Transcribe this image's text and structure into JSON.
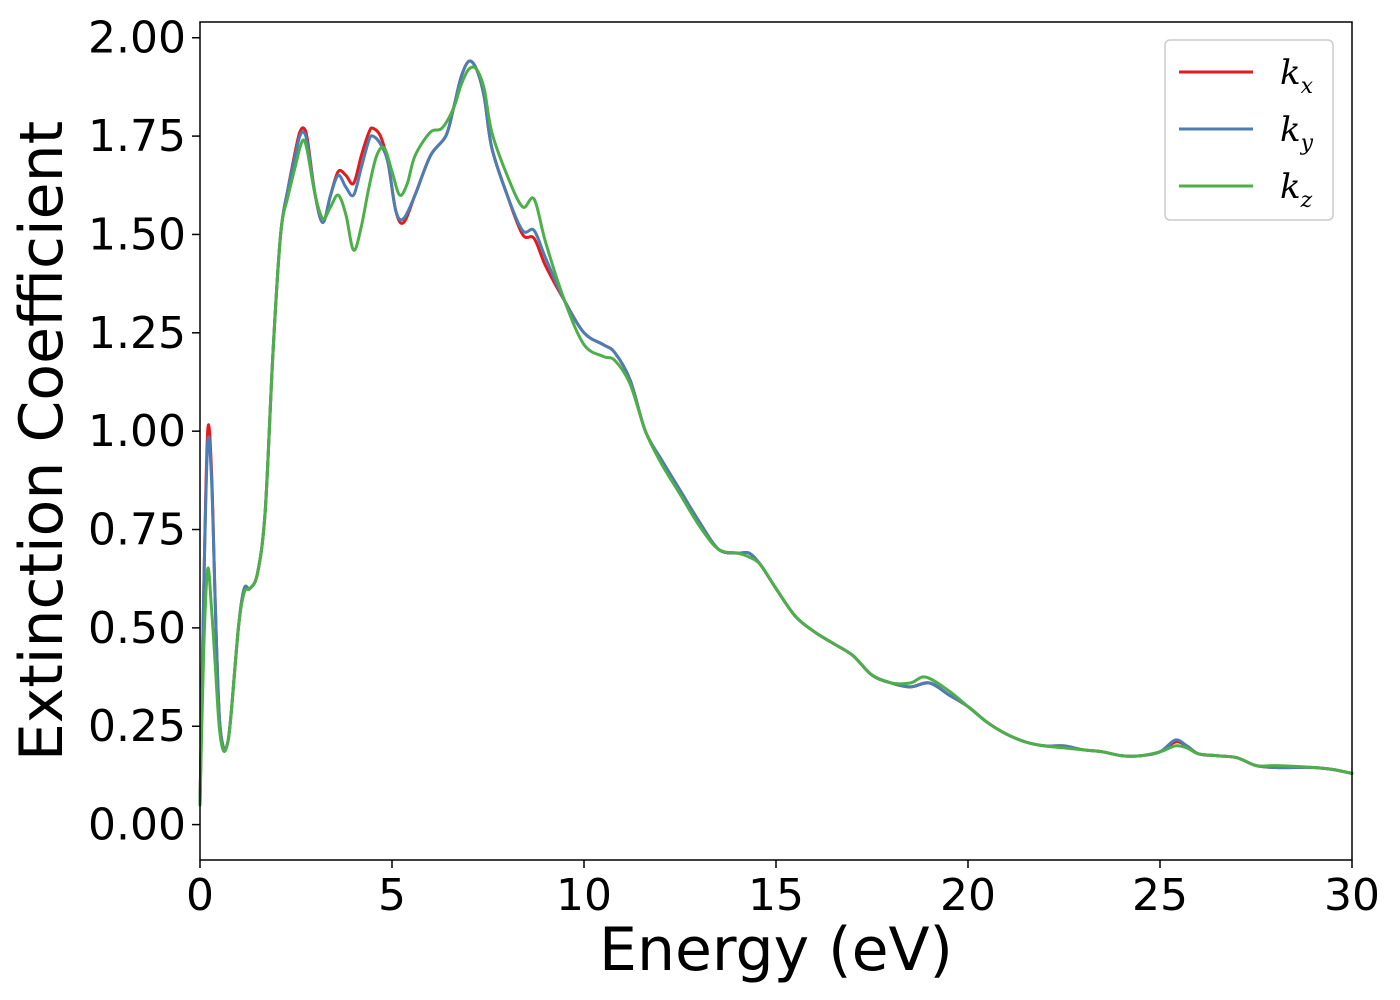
{
  "chart_data": {
    "type": "line",
    "xlabel": "Energy (eV)",
    "ylabel": "Extinction Coefficient",
    "xlim": [
      0,
      30
    ],
    "ylim": [
      -0.09,
      2.04
    ],
    "xticks": [
      0,
      5,
      10,
      15,
      20,
      25,
      30
    ],
    "xtick_labels": [
      "0",
      "5",
      "10",
      "15",
      "20",
      "25",
      "30"
    ],
    "yticks": [
      0.0,
      0.25,
      0.5,
      0.75,
      1.0,
      1.25,
      1.5,
      1.75,
      2.0
    ],
    "ytick_labels": [
      "0.00",
      "0.25",
      "0.50",
      "0.75",
      "1.00",
      "1.25",
      "1.50",
      "1.75",
      "2.00"
    ],
    "grid": false,
    "legend_position": "top-right",
    "series": [
      {
        "name": "k_x",
        "label_base": "k",
        "label_sub": "x",
        "color": "#e41a1c",
        "points": [
          [
            0,
            0.05
          ],
          [
            0.1,
            0.6
          ],
          [
            0.2,
            1.0
          ],
          [
            0.3,
            0.9
          ],
          [
            0.4,
            0.55
          ],
          [
            0.5,
            0.28
          ],
          [
            0.6,
            0.2
          ],
          [
            0.7,
            0.2
          ],
          [
            0.8,
            0.27
          ],
          [
            1.0,
            0.5
          ],
          [
            1.15,
            0.6
          ],
          [
            1.3,
            0.6
          ],
          [
            1.5,
            0.64
          ],
          [
            1.7,
            0.8
          ],
          [
            1.9,
            1.2
          ],
          [
            2.1,
            1.5
          ],
          [
            2.3,
            1.62
          ],
          [
            2.5,
            1.72
          ],
          [
            2.6,
            1.76
          ],
          [
            2.7,
            1.77
          ],
          [
            2.8,
            1.74
          ],
          [
            3.0,
            1.6
          ],
          [
            3.2,
            1.53
          ],
          [
            3.4,
            1.6
          ],
          [
            3.6,
            1.66
          ],
          [
            3.8,
            1.65
          ],
          [
            4.0,
            1.63
          ],
          [
            4.2,
            1.7
          ],
          [
            4.4,
            1.76
          ],
          [
            4.5,
            1.77
          ],
          [
            4.7,
            1.75
          ],
          [
            4.9,
            1.68
          ],
          [
            5.1,
            1.56
          ],
          [
            5.3,
            1.53
          ],
          [
            5.6,
            1.6
          ],
          [
            6.0,
            1.7
          ],
          [
            6.4,
            1.75
          ],
          [
            6.6,
            1.82
          ],
          [
            6.8,
            1.9
          ],
          [
            7.0,
            1.94
          ],
          [
            7.2,
            1.92
          ],
          [
            7.4,
            1.85
          ],
          [
            7.6,
            1.72
          ],
          [
            8.0,
            1.6
          ],
          [
            8.4,
            1.5
          ],
          [
            8.7,
            1.49
          ],
          [
            9.0,
            1.42
          ],
          [
            9.5,
            1.33
          ],
          [
            10.0,
            1.25
          ],
          [
            10.5,
            1.22
          ],
          [
            10.8,
            1.2
          ],
          [
            11.2,
            1.13
          ],
          [
            11.6,
            1.0
          ],
          [
            12.0,
            0.93
          ],
          [
            12.5,
            0.85
          ],
          [
            13.0,
            0.77
          ],
          [
            13.5,
            0.7
          ],
          [
            14.0,
            0.69
          ],
          [
            14.3,
            0.69
          ],
          [
            14.6,
            0.66
          ],
          [
            15.0,
            0.6
          ],
          [
            15.5,
            0.53
          ],
          [
            16.0,
            0.49
          ],
          [
            16.5,
            0.46
          ],
          [
            17.0,
            0.43
          ],
          [
            17.5,
            0.38
          ],
          [
            18.0,
            0.36
          ],
          [
            18.5,
            0.35
          ],
          [
            19.0,
            0.36
          ],
          [
            19.5,
            0.33
          ],
          [
            20.0,
            0.3
          ],
          [
            20.5,
            0.26
          ],
          [
            21.0,
            0.23
          ],
          [
            21.5,
            0.21
          ],
          [
            22.0,
            0.2
          ],
          [
            22.5,
            0.2
          ],
          [
            23.0,
            0.19
          ],
          [
            23.5,
            0.185
          ],
          [
            24.0,
            0.175
          ],
          [
            24.5,
            0.175
          ],
          [
            25.0,
            0.185
          ],
          [
            25.4,
            0.21
          ],
          [
            25.7,
            0.2
          ],
          [
            26.0,
            0.18
          ],
          [
            26.5,
            0.175
          ],
          [
            27.0,
            0.17
          ],
          [
            27.5,
            0.15
          ],
          [
            28.0,
            0.145
          ],
          [
            28.5,
            0.145
          ],
          [
            29.0,
            0.145
          ],
          [
            29.5,
            0.14
          ],
          [
            30.0,
            0.13
          ]
        ]
      },
      {
        "name": "k_y",
        "label_base": "k",
        "label_sub": "y",
        "color": "#4a7eb5",
        "points": [
          [
            0,
            0.05
          ],
          [
            0.1,
            0.6
          ],
          [
            0.2,
            0.97
          ],
          [
            0.3,
            0.88
          ],
          [
            0.4,
            0.55
          ],
          [
            0.5,
            0.28
          ],
          [
            0.6,
            0.2
          ],
          [
            0.7,
            0.2
          ],
          [
            0.8,
            0.27
          ],
          [
            1.0,
            0.5
          ],
          [
            1.15,
            0.6
          ],
          [
            1.3,
            0.6
          ],
          [
            1.5,
            0.64
          ],
          [
            1.7,
            0.8
          ],
          [
            1.9,
            1.2
          ],
          [
            2.1,
            1.5
          ],
          [
            2.3,
            1.62
          ],
          [
            2.5,
            1.71
          ],
          [
            2.6,
            1.75
          ],
          [
            2.7,
            1.76
          ],
          [
            2.8,
            1.73
          ],
          [
            3.0,
            1.6
          ],
          [
            3.2,
            1.53
          ],
          [
            3.4,
            1.6
          ],
          [
            3.6,
            1.65
          ],
          [
            3.8,
            1.62
          ],
          [
            4.0,
            1.6
          ],
          [
            4.2,
            1.67
          ],
          [
            4.4,
            1.74
          ],
          [
            4.5,
            1.75
          ],
          [
            4.7,
            1.73
          ],
          [
            4.9,
            1.68
          ],
          [
            5.1,
            1.56
          ],
          [
            5.3,
            1.54
          ],
          [
            5.6,
            1.6
          ],
          [
            6.0,
            1.7
          ],
          [
            6.4,
            1.75
          ],
          [
            6.6,
            1.82
          ],
          [
            6.8,
            1.9
          ],
          [
            7.0,
            1.94
          ],
          [
            7.2,
            1.92
          ],
          [
            7.4,
            1.85
          ],
          [
            7.6,
            1.72
          ],
          [
            8.0,
            1.6
          ],
          [
            8.4,
            1.51
          ],
          [
            8.7,
            1.51
          ],
          [
            9.0,
            1.44
          ],
          [
            9.5,
            1.33
          ],
          [
            10.0,
            1.25
          ],
          [
            10.5,
            1.22
          ],
          [
            10.8,
            1.2
          ],
          [
            11.2,
            1.13
          ],
          [
            11.6,
            1.0
          ],
          [
            12.0,
            0.93
          ],
          [
            12.5,
            0.85
          ],
          [
            13.0,
            0.77
          ],
          [
            13.5,
            0.7
          ],
          [
            14.0,
            0.69
          ],
          [
            14.3,
            0.69
          ],
          [
            14.6,
            0.66
          ],
          [
            15.0,
            0.6
          ],
          [
            15.5,
            0.53
          ],
          [
            16.0,
            0.49
          ],
          [
            16.5,
            0.46
          ],
          [
            17.0,
            0.43
          ],
          [
            17.5,
            0.38
          ],
          [
            18.0,
            0.36
          ],
          [
            18.5,
            0.35
          ],
          [
            19.0,
            0.36
          ],
          [
            19.5,
            0.33
          ],
          [
            20.0,
            0.3
          ],
          [
            20.5,
            0.26
          ],
          [
            21.0,
            0.23
          ],
          [
            21.5,
            0.21
          ],
          [
            22.0,
            0.2
          ],
          [
            22.5,
            0.2
          ],
          [
            23.0,
            0.19
          ],
          [
            23.5,
            0.185
          ],
          [
            24.0,
            0.175
          ],
          [
            24.5,
            0.175
          ],
          [
            25.0,
            0.185
          ],
          [
            25.4,
            0.215
          ],
          [
            25.7,
            0.2
          ],
          [
            26.0,
            0.18
          ],
          [
            26.5,
            0.175
          ],
          [
            27.0,
            0.17
          ],
          [
            27.5,
            0.15
          ],
          [
            28.0,
            0.145
          ],
          [
            28.5,
            0.145
          ],
          [
            29.0,
            0.145
          ],
          [
            29.5,
            0.14
          ],
          [
            30.0,
            0.13
          ]
        ]
      },
      {
        "name": "k_z",
        "label_base": "k",
        "label_sub": "z",
        "color": "#4daf4a",
        "points": [
          [
            0,
            0.05
          ],
          [
            0.1,
            0.45
          ],
          [
            0.2,
            0.65
          ],
          [
            0.3,
            0.55
          ],
          [
            0.4,
            0.4
          ],
          [
            0.5,
            0.25
          ],
          [
            0.6,
            0.19
          ],
          [
            0.7,
            0.2
          ],
          [
            0.8,
            0.27
          ],
          [
            1.0,
            0.5
          ],
          [
            1.15,
            0.59
          ],
          [
            1.3,
            0.6
          ],
          [
            1.5,
            0.64
          ],
          [
            1.7,
            0.8
          ],
          [
            1.9,
            1.2
          ],
          [
            2.1,
            1.5
          ],
          [
            2.3,
            1.6
          ],
          [
            2.5,
            1.68
          ],
          [
            2.6,
            1.72
          ],
          [
            2.7,
            1.74
          ],
          [
            2.8,
            1.71
          ],
          [
            3.0,
            1.6
          ],
          [
            3.2,
            1.54
          ],
          [
            3.4,
            1.57
          ],
          [
            3.6,
            1.6
          ],
          [
            3.8,
            1.55
          ],
          [
            4.0,
            1.46
          ],
          [
            4.2,
            1.52
          ],
          [
            4.4,
            1.62
          ],
          [
            4.6,
            1.7
          ],
          [
            4.8,
            1.72
          ],
          [
            5.0,
            1.66
          ],
          [
            5.2,
            1.6
          ],
          [
            5.4,
            1.63
          ],
          [
            5.6,
            1.7
          ],
          [
            6.0,
            1.76
          ],
          [
            6.3,
            1.77
          ],
          [
            6.6,
            1.82
          ],
          [
            6.8,
            1.88
          ],
          [
            7.0,
            1.92
          ],
          [
            7.2,
            1.92
          ],
          [
            7.4,
            1.87
          ],
          [
            7.6,
            1.76
          ],
          [
            8.0,
            1.65
          ],
          [
            8.4,
            1.57
          ],
          [
            8.7,
            1.59
          ],
          [
            9.0,
            1.48
          ],
          [
            9.5,
            1.33
          ],
          [
            10.0,
            1.22
          ],
          [
            10.5,
            1.19
          ],
          [
            10.8,
            1.18
          ],
          [
            11.2,
            1.12
          ],
          [
            11.6,
            1.0
          ],
          [
            12.0,
            0.92
          ],
          [
            12.5,
            0.84
          ],
          [
            13.0,
            0.76
          ],
          [
            13.5,
            0.7
          ],
          [
            14.0,
            0.69
          ],
          [
            14.3,
            0.68
          ],
          [
            14.6,
            0.66
          ],
          [
            15.0,
            0.6
          ],
          [
            15.5,
            0.53
          ],
          [
            16.0,
            0.49
          ],
          [
            16.5,
            0.46
          ],
          [
            17.0,
            0.43
          ],
          [
            17.5,
            0.38
          ],
          [
            18.0,
            0.36
          ],
          [
            18.5,
            0.36
          ],
          [
            18.9,
            0.375
          ],
          [
            19.5,
            0.34
          ],
          [
            20.0,
            0.3
          ],
          [
            20.5,
            0.26
          ],
          [
            21.0,
            0.23
          ],
          [
            21.5,
            0.21
          ],
          [
            22.0,
            0.2
          ],
          [
            22.5,
            0.195
          ],
          [
            23.0,
            0.19
          ],
          [
            23.5,
            0.185
          ],
          [
            24.0,
            0.175
          ],
          [
            24.5,
            0.175
          ],
          [
            25.0,
            0.185
          ],
          [
            25.4,
            0.2
          ],
          [
            25.7,
            0.195
          ],
          [
            26.0,
            0.18
          ],
          [
            26.5,
            0.175
          ],
          [
            27.0,
            0.17
          ],
          [
            27.5,
            0.15
          ],
          [
            28.0,
            0.15
          ],
          [
            28.5,
            0.148
          ],
          [
            29.0,
            0.145
          ],
          [
            29.5,
            0.14
          ],
          [
            30.0,
            0.13
          ]
        ]
      }
    ]
  }
}
